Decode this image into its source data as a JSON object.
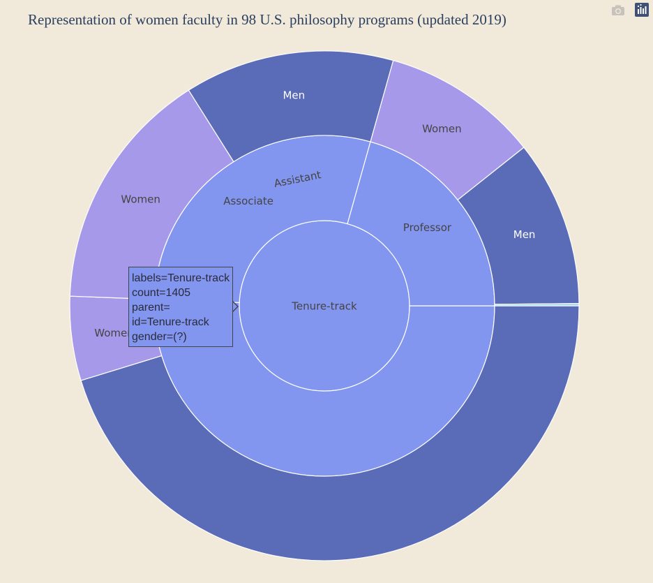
{
  "title": "Representation of women faculty in 98 U.S. philosophy programs (updated 2019)",
  "modebar": {
    "camera_icon": "camera-icon",
    "logo_icon": "plotly-logo-icon"
  },
  "colors": {
    "root": "#8296ef",
    "rank": "#8296ef",
    "men": "#5a6cb8",
    "women": "#a799e9",
    "stroke": "#ffffff",
    "text_dark": "#444444",
    "text_light": "#ffffff"
  },
  "chart_data": {
    "type": "sunburst",
    "title": "Representation of women faculty in 98 U.S. philosophy programs (updated 2019)",
    "root": {
      "label": "Tenure-track",
      "count": 1405
    },
    "nodes": [
      {
        "id": "Assistant",
        "label": "Assistant",
        "parent": "Tenure-track",
        "value": 711
      },
      {
        "id": "Associate",
        "label": "Associate",
        "parent": "Tenure-track",
        "value": 404
      },
      {
        "id": "Professor",
        "label": "Professor",
        "parent": "Tenure-track",
        "value": 290
      }
    ],
    "leaves": [
      {
        "parent": "Assistant",
        "label": "Men",
        "value": 636
      },
      {
        "parent": "Assistant",
        "label": "Women",
        "value": 75
      },
      {
        "parent": "Associate",
        "label": "Women",
        "value": 217
      },
      {
        "parent": "Associate",
        "label": "Men",
        "value": 187
      },
      {
        "parent": "Professor",
        "label": "Women",
        "value": 140
      },
      {
        "parent": "Professor",
        "label": "Men",
        "value": 148
      },
      {
        "parent": "Professor",
        "label": "",
        "value": 2
      }
    ]
  },
  "tooltip": {
    "line1": "labels=Tenure-track",
    "line2": "count=1405",
    "line3": "parent=",
    "line4": "id=Tenure-track",
    "line5": "gender=(?)"
  }
}
